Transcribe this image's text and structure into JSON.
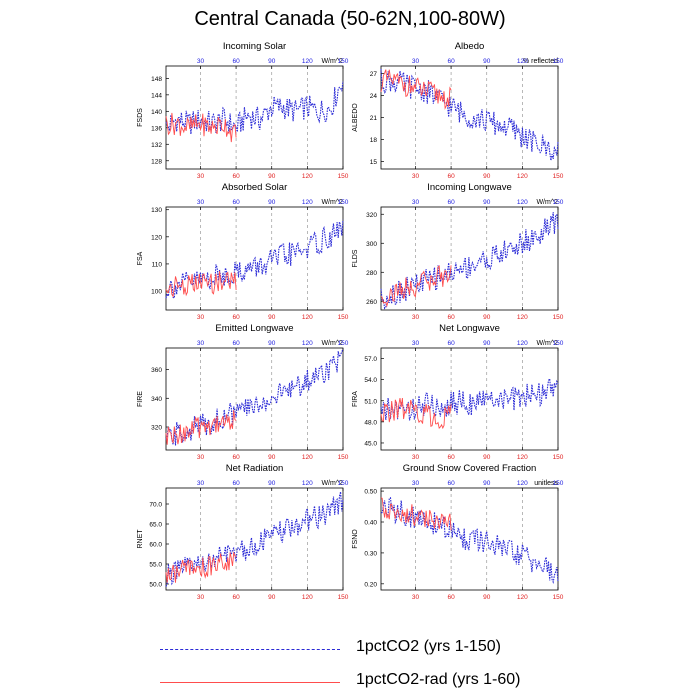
{
  "page": {
    "title": "Central Canada (50-62N,100-80W)"
  },
  "legend": [
    {
      "label": "1pctCO2 (yrs 1-150)",
      "color": "#2a2ad6",
      "style": "dashed"
    },
    {
      "label": "1pctCO2-rad (yrs 1-60)",
      "color": "#ff4d4d",
      "style": "solid"
    }
  ],
  "chart_data": [
    {
      "type": "line",
      "title": "Incoming Solar",
      "ylabel": "FSDS",
      "units": "W/m^2",
      "x_bottom_ticks": [
        30,
        60,
        90,
        120,
        150
      ],
      "x_top_ticks": [
        30,
        60,
        90,
        120,
        150
      ],
      "xlim": [
        1,
        150
      ],
      "ylim": [
        126,
        151
      ],
      "yticks": [
        128,
        132,
        136,
        140,
        144,
        148
      ],
      "series": [
        {
          "name": "1pctCO2 (yrs 1-150)",
          "color": "#2a2ad6",
          "x": [
            1,
            10,
            20,
            30,
            40,
            50,
            60,
            70,
            80,
            90,
            100,
            110,
            120,
            130,
            140,
            150
          ],
          "y": [
            136,
            138,
            137,
            138,
            137,
            138,
            136,
            139,
            138,
            141,
            141,
            140,
            141,
            140,
            141,
            148
          ]
        },
        {
          "name": "1pctCO2-rad (yrs 1-60)",
          "color": "#ff4d4d",
          "x": [
            1,
            10,
            20,
            30,
            40,
            50,
            60
          ],
          "y": [
            137,
            137,
            136,
            137,
            136,
            137,
            134
          ]
        }
      ]
    },
    {
      "type": "line",
      "title": "Albedo",
      "ylabel": "ALBEDO",
      "units": "% reflected",
      "x_bottom_ticks": [
        30,
        60,
        90,
        120,
        150
      ],
      "x_top_ticks": [
        30,
        60,
        90,
        120,
        150
      ],
      "xlim": [
        1,
        150
      ],
      "ylim": [
        14,
        28
      ],
      "yticks": [
        15,
        18,
        21,
        24,
        27
      ],
      "series": [
        {
          "name": "1pctCO2 (yrs 1-150)",
          "color": "#2a2ad6",
          "x": [
            1,
            10,
            20,
            30,
            40,
            50,
            60,
            70,
            80,
            90,
            100,
            110,
            120,
            130,
            140,
            150
          ],
          "y": [
            26,
            26,
            25.5,
            25,
            24.5,
            23.5,
            22.5,
            21.5,
            21,
            20.5,
            20,
            19.5,
            18.5,
            17.5,
            17,
            16
          ]
        },
        {
          "name": "1pctCO2-rad (yrs 1-60)",
          "color": "#ff4d4d",
          "x": [
            1,
            10,
            20,
            30,
            40,
            50,
            60
          ],
          "y": [
            26,
            26,
            25.5,
            25,
            24.5,
            24,
            23.5
          ]
        }
      ]
    },
    {
      "type": "line",
      "title": "Absorbed Solar",
      "ylabel": "FSA",
      "units": "W/m^2",
      "x_bottom_ticks": [
        30,
        60,
        90,
        120,
        150
      ],
      "x_top_ticks": [
        30,
        60,
        90,
        120,
        150
      ],
      "xlim": [
        1,
        150
      ],
      "ylim": [
        93,
        131
      ],
      "yticks": [
        100,
        110,
        120,
        130
      ],
      "series": [
        {
          "name": "1pctCO2 (yrs 1-150)",
          "color": "#2a2ad6",
          "x": [
            1,
            10,
            20,
            30,
            40,
            50,
            60,
            70,
            80,
            90,
            100,
            110,
            120,
            130,
            140,
            150
          ],
          "y": [
            101,
            102,
            103,
            104,
            105,
            106,
            107,
            108,
            109,
            111,
            113,
            114,
            116,
            118,
            120,
            124
          ]
        },
        {
          "name": "1pctCO2-rad (yrs 1-60)",
          "color": "#ff4d4d",
          "x": [
            1,
            10,
            20,
            30,
            40,
            50,
            60
          ],
          "y": [
            101,
            102,
            102,
            103,
            103,
            104,
            104
          ]
        }
      ]
    },
    {
      "type": "line",
      "title": "Incoming Longwave",
      "ylabel": "FLDS",
      "units": "W/m^2",
      "x_bottom_ticks": [
        30,
        60,
        90,
        120,
        150
      ],
      "x_top_ticks": [
        30,
        60,
        90,
        120,
        150
      ],
      "xlim": [
        1,
        150
      ],
      "ylim": [
        254,
        325
      ],
      "yticks": [
        260,
        280,
        300,
        320
      ],
      "series": [
        {
          "name": "1pctCO2 (yrs 1-150)",
          "color": "#2a2ad6",
          "x": [
            1,
            10,
            20,
            30,
            40,
            50,
            60,
            70,
            80,
            90,
            100,
            110,
            120,
            130,
            140,
            150
          ],
          "y": [
            262,
            265,
            268,
            271,
            274,
            277,
            280,
            283,
            286,
            289,
            292,
            296,
            300,
            304,
            309,
            316
          ]
        },
        {
          "name": "1pctCO2-rad (yrs 1-60)",
          "color": "#ff4d4d",
          "x": [
            1,
            10,
            20,
            30,
            40,
            50,
            60
          ],
          "y": [
            262,
            265,
            268,
            271,
            274,
            277,
            279
          ]
        }
      ]
    },
    {
      "type": "line",
      "title": "Emitted Longwave",
      "ylabel": "FIRE",
      "units": "W/m^2",
      "x_bottom_ticks": [
        30,
        60,
        90,
        120,
        150
      ],
      "x_top_ticks": [
        30,
        60,
        90,
        120,
        150
      ],
      "xlim": [
        1,
        150
      ],
      "ylim": [
        304,
        375
      ],
      "yticks": [
        320,
        340,
        360
      ],
      "series": [
        {
          "name": "1pctCO2 (yrs 1-150)",
          "color": "#2a2ad6",
          "x": [
            1,
            10,
            20,
            30,
            40,
            50,
            60,
            70,
            80,
            90,
            100,
            110,
            120,
            130,
            140,
            150
          ],
          "y": [
            312,
            315,
            318,
            321,
            324,
            327,
            330,
            333,
            336,
            340,
            344,
            348,
            352,
            357,
            362,
            370
          ]
        },
        {
          "name": "1pctCO2-rad (yrs 1-60)",
          "color": "#ff4d4d",
          "x": [
            1,
            10,
            20,
            30,
            40,
            50,
            60
          ],
          "y": [
            312,
            315,
            317,
            320,
            322,
            324,
            325
          ]
        }
      ]
    },
    {
      "type": "line",
      "title": "Net Longwave",
      "ylabel": "FIRA",
      "units": "W/m^2",
      "x_bottom_ticks": [
        30,
        60,
        90,
        120,
        150
      ],
      "x_top_ticks": [
        30,
        60,
        90,
        120,
        150
      ],
      "xlim": [
        1,
        150
      ],
      "ylim": [
        44,
        58.5
      ],
      "yticks": [
        45.0,
        48.0,
        51.0,
        54.0,
        57.0
      ],
      "series": [
        {
          "name": "1pctCO2 (yrs 1-150)",
          "color": "#2a2ad6",
          "x": [
            1,
            10,
            20,
            30,
            40,
            50,
            60,
            70,
            80,
            90,
            100,
            110,
            120,
            130,
            140,
            150
          ],
          "y": [
            49,
            50,
            49.5,
            50,
            50.5,
            50,
            50.5,
            51,
            50.5,
            51,
            51.5,
            51,
            51.5,
            52,
            52,
            54
          ]
        },
        {
          "name": "1pctCO2-rad (yrs 1-60)",
          "color": "#ff4d4d",
          "x": [
            1,
            10,
            20,
            30,
            40,
            50,
            60
          ],
          "y": [
            49,
            49.5,
            50,
            49.5,
            49,
            48.5,
            49
          ]
        }
      ]
    },
    {
      "type": "line",
      "title": "Net Radiation",
      "ylabel": "RNET",
      "units": "W/m^2",
      "x_bottom_ticks": [
        30,
        60,
        90,
        120,
        150
      ],
      "x_top_ticks": [
        30,
        60,
        90,
        120,
        150
      ],
      "xlim": [
        1,
        150
      ],
      "ylim": [
        48.5,
        74
      ],
      "yticks": [
        50.0,
        55.0,
        60.0,
        65.0,
        70.0
      ],
      "series": [
        {
          "name": "1pctCO2 (yrs 1-150)",
          "color": "#2a2ad6",
          "x": [
            1,
            10,
            20,
            30,
            40,
            50,
            60,
            70,
            80,
            90,
            100,
            110,
            120,
            130,
            140,
            150
          ],
          "y": [
            52,
            53,
            54,
            55,
            56,
            57,
            58,
            59,
            60.5,
            62,
            63,
            64.5,
            66,
            67,
            68.5,
            71
          ]
        },
        {
          "name": "1pctCO2-rad (yrs 1-60)",
          "color": "#ff4d4d",
          "x": [
            1,
            10,
            20,
            30,
            40,
            50,
            60
          ],
          "y": [
            52,
            53,
            53.5,
            54,
            55,
            55.5,
            56
          ]
        }
      ]
    },
    {
      "type": "line",
      "title": "Ground Snow Covered Fraction",
      "ylabel": "FSNO",
      "units": "unitless",
      "x_bottom_ticks": [
        30,
        60,
        90,
        120,
        150
      ],
      "x_top_ticks": [
        30,
        60,
        90,
        120,
        150
      ],
      "xlim": [
        1,
        150
      ],
      "ylim": [
        0.18,
        0.51
      ],
      "yticks": [
        0.2,
        0.3,
        0.4,
        0.5
      ],
      "series": [
        {
          "name": "1pctCO2 (yrs 1-150)",
          "color": "#2a2ad6",
          "x": [
            1,
            10,
            20,
            30,
            40,
            50,
            60,
            70,
            80,
            90,
            100,
            110,
            120,
            130,
            140,
            150
          ],
          "y": [
            0.45,
            0.44,
            0.43,
            0.41,
            0.4,
            0.39,
            0.37,
            0.35,
            0.34,
            0.33,
            0.32,
            0.3,
            0.29,
            0.27,
            0.25,
            0.22
          ]
        },
        {
          "name": "1pctCO2-rad (yrs 1-60)",
          "color": "#ff4d4d",
          "x": [
            1,
            10,
            20,
            30,
            40,
            50,
            60
          ],
          "y": [
            0.45,
            0.44,
            0.43,
            0.42,
            0.41,
            0.4,
            0.39
          ]
        }
      ]
    }
  ]
}
